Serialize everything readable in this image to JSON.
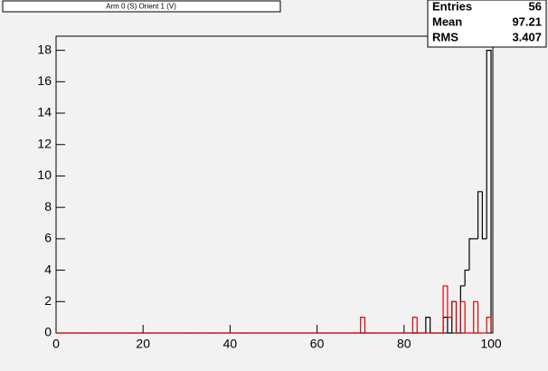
{
  "chart_data": {
    "type": "histogram",
    "title": "Arm 0 (S) Orient 1 (V)",
    "stats": [
      {
        "label": "Entries",
        "value": 56
      },
      {
        "label": "Mean",
        "value": 97.21
      },
      {
        "label": "RMS",
        "value": 3.407
      }
    ],
    "bins": [
      0,
      1,
      2,
      3,
      4,
      5,
      6,
      7,
      8,
      9,
      10,
      11,
      12,
      13,
      14,
      15,
      16,
      17,
      18,
      19,
      20,
      21,
      22,
      23,
      24,
      25,
      26,
      27,
      28,
      29,
      30,
      31,
      32,
      33,
      34,
      35,
      36,
      37,
      38,
      39,
      40,
      41,
      42,
      43,
      44,
      45,
      46,
      47,
      48,
      49,
      50,
      51,
      52,
      53,
      54,
      55,
      56,
      57,
      58,
      59,
      60,
      61,
      62,
      63,
      64,
      65,
      66,
      67,
      68,
      69,
      70,
      71,
      72,
      73,
      74,
      75,
      76,
      77,
      78,
      79,
      80,
      81,
      82,
      83,
      84,
      85,
      86,
      87,
      88,
      89,
      90,
      91,
      92,
      93,
      94,
      95,
      96,
      97,
      98,
      99,
      100
    ],
    "series": [
      {
        "color": "#000000",
        "values": [
          0,
          0,
          0,
          0,
          0,
          0,
          0,
          0,
          0,
          0,
          0,
          0,
          0,
          0,
          0,
          0,
          0,
          0,
          0,
          0,
          0,
          0,
          0,
          0,
          0,
          0,
          0,
          0,
          0,
          0,
          0,
          0,
          0,
          0,
          0,
          0,
          0,
          0,
          0,
          0,
          0,
          0,
          0,
          0,
          0,
          0,
          0,
          0,
          0,
          0,
          0,
          0,
          0,
          0,
          0,
          0,
          0,
          0,
          0,
          0,
          0,
          0,
          0,
          0,
          0,
          0,
          0,
          0,
          0,
          0,
          0,
          0,
          0,
          0,
          0,
          0,
          0,
          0,
          0,
          0,
          0,
          0,
          0,
          0,
          0,
          1,
          0,
          0,
          0,
          1,
          0,
          2,
          0,
          3,
          4,
          6,
          6,
          9,
          6,
          18
        ]
      },
      {
        "color": "#e00000",
        "values": [
          0,
          0,
          0,
          0,
          0,
          0,
          0,
          0,
          0,
          0,
          0,
          0,
          0,
          0,
          0,
          0,
          0,
          0,
          0,
          0,
          0,
          0,
          0,
          0,
          0,
          0,
          0,
          0,
          0,
          0,
          0,
          0,
          0,
          0,
          0,
          0,
          0,
          0,
          0,
          0,
          0,
          0,
          0,
          0,
          0,
          0,
          0,
          0,
          0,
          0,
          0,
          0,
          0,
          0,
          0,
          0,
          0,
          0,
          0,
          0,
          0,
          0,
          0,
          0,
          0,
          0,
          0,
          0,
          0,
          0,
          1,
          0,
          0,
          0,
          0,
          0,
          0,
          0,
          0,
          0,
          0,
          0,
          1,
          0,
          0,
          0,
          0,
          0,
          0,
          3,
          1,
          2,
          0,
          2,
          0,
          0,
          2,
          0,
          0,
          1
        ]
      }
    ],
    "xlim": [
      0,
      100
    ],
    "xticks": [
      0,
      20,
      40,
      60,
      80,
      100
    ],
    "ylim": [
      0,
      18.9
    ],
    "yticks": [
      0,
      2,
      4,
      6,
      8,
      10,
      12,
      14,
      16,
      18
    ]
  }
}
